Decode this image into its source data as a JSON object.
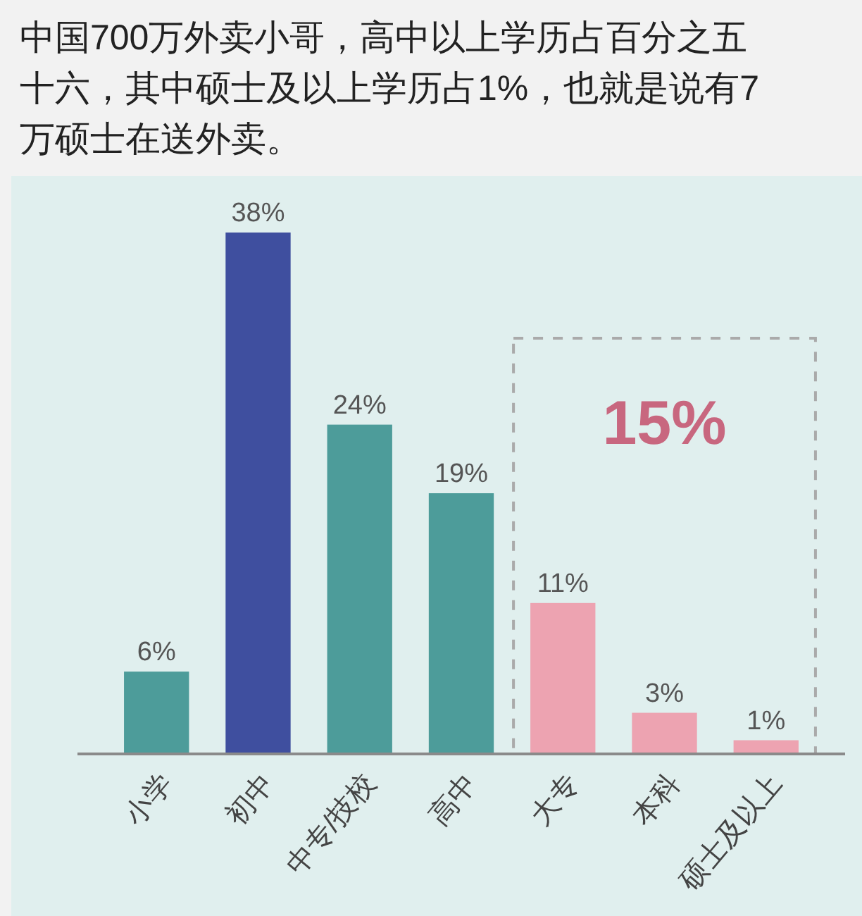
{
  "chart_data": {
    "type": "bar",
    "title": "中国700万外卖小哥，高中以上学历占百分之五十六，其中硕士及以上学历占1%，也就是说有7万硕士在送外卖。",
    "categories": [
      "小学",
      "初中",
      "中专/技校",
      "高中",
      "大专",
      "本科",
      "硕士及以上"
    ],
    "values": [
      6,
      38,
      24,
      19,
      11,
      3,
      1
    ],
    "colors": [
      "#4d9c9a",
      "#3f4f9f",
      "#4d9c9a",
      "#4d9c9a",
      "#eda3b1",
      "#eda3b1",
      "#eda3b1"
    ],
    "value_labels": [
      "6%",
      "38%",
      "24%",
      "19%",
      "11%",
      "3%",
      "1%"
    ],
    "annotations": [
      "15%"
    ]
  }
}
